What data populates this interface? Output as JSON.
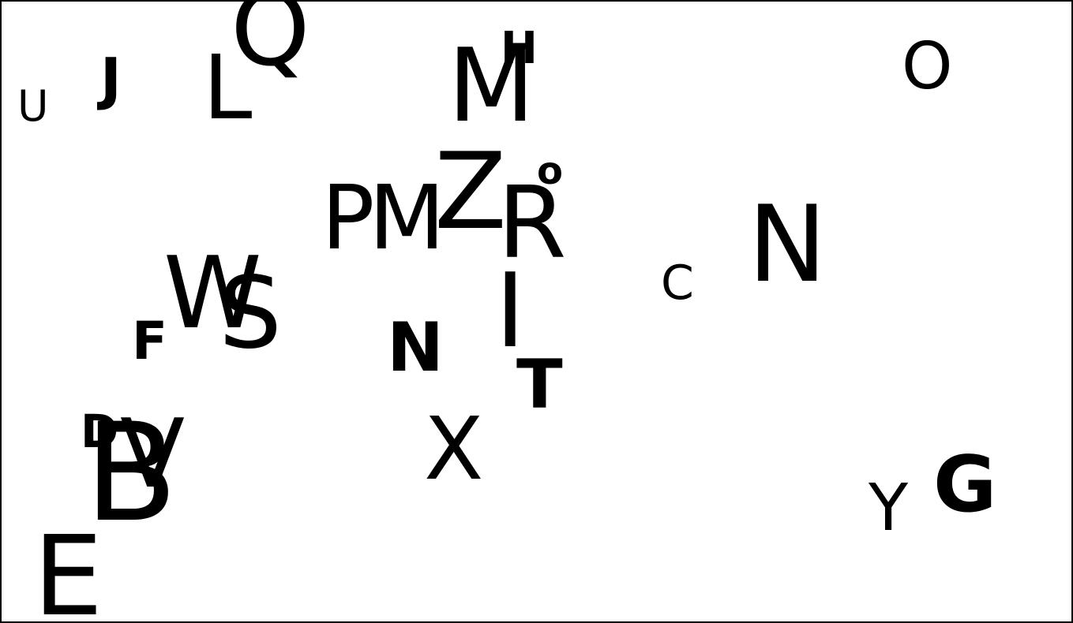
{
  "colors": {
    "background": "#ffffff",
    "ink": "#000000"
  },
  "letters": [
    "U",
    "J",
    "L",
    "Q",
    "M",
    "H",
    "O",
    "P",
    "M",
    "Z",
    "o",
    "R",
    "W",
    "S",
    "F",
    "I",
    "C",
    "N",
    "N",
    "T",
    "D",
    "V",
    "B",
    "X",
    "Y",
    "G",
    "E",
    "I"
  ]
}
